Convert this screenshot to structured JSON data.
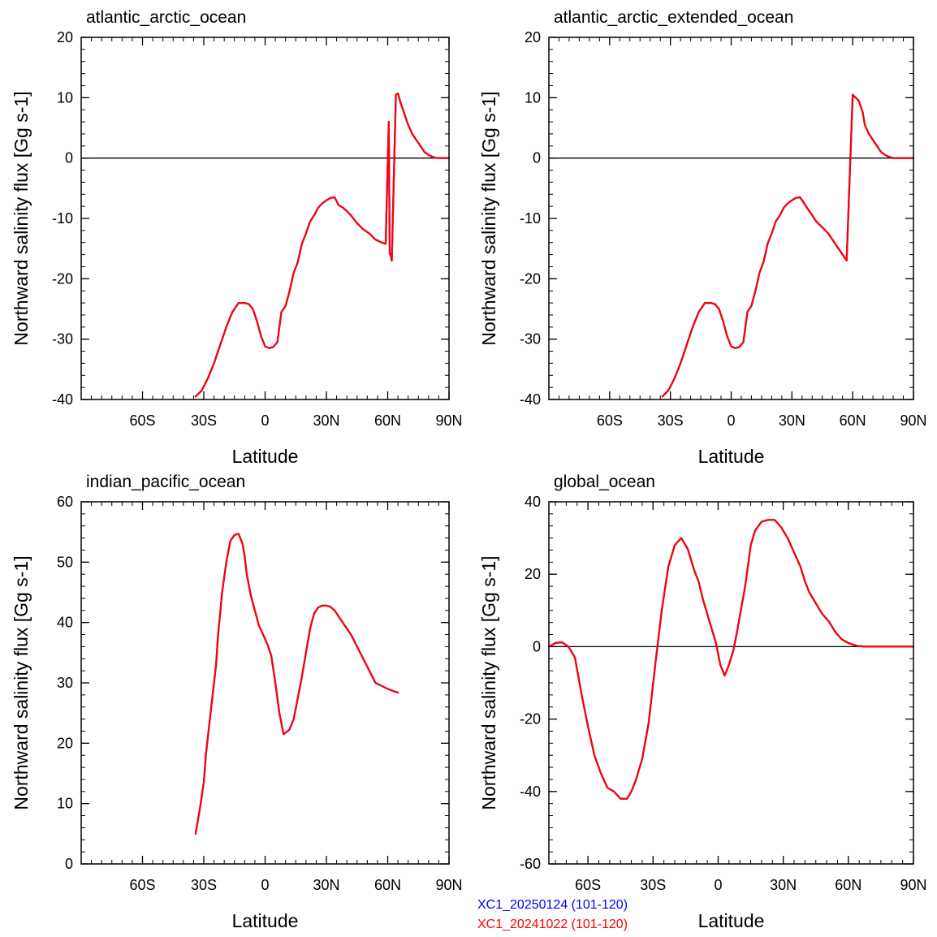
{
  "legend": [
    {
      "label": "XC1_20250124 (101-120)",
      "color": "#0000ff"
    },
    {
      "label": "XC1_20241022 (101-120)",
      "color": "#ff0000"
    }
  ],
  "chart_data": [
    {
      "type": "line",
      "title": "atlantic_arctic_ocean",
      "xlabel": "Latitude",
      "ylabel": "Northward salinity flux [Gg s-1]",
      "xlim": [
        -90,
        90
      ],
      "ylim": [
        -40,
        20
      ],
      "xticks": [
        -60,
        -30,
        0,
        30,
        60,
        90
      ],
      "xtick_labels": [
        "60S",
        "30S",
        "0",
        "30N",
        "60N",
        "90N"
      ],
      "yticks": [
        -40,
        -30,
        -20,
        -10,
        0,
        10,
        20
      ],
      "ytick_labels": [
        "-40",
        "-30",
        "-20",
        "-10",
        "0",
        "10",
        "20"
      ],
      "zero_line": true,
      "series": [
        {
          "color": "#ff0000",
          "x": [
            -34,
            -31,
            -28,
            -25,
            -22,
            -19,
            -16,
            -13,
            -10,
            -8,
            -6,
            -4,
            -2,
            0,
            2,
            4,
            6,
            8,
            10,
            12,
            14,
            16,
            18,
            20,
            22,
            24,
            26,
            28,
            30,
            32,
            34,
            36,
            38,
            40,
            42,
            45,
            48,
            51,
            54,
            57,
            59,
            60.5,
            61,
            61.5,
            62,
            64,
            65,
            66,
            68,
            70,
            72,
            74,
            76,
            78,
            80,
            82,
            84,
            86,
            88,
            90
          ],
          "y": [
            -39.5,
            -38.5,
            -36.5,
            -34,
            -31,
            -28,
            -25.5,
            -24,
            -24,
            -24.2,
            -25,
            -27,
            -29.5,
            -31.2,
            -31.5,
            -31.3,
            -30.5,
            -25.5,
            -24.5,
            -22,
            -19,
            -17.2,
            -14.2,
            -12.5,
            -10.5,
            -9.5,
            -8.2,
            -7.5,
            -7,
            -6.6,
            -6.5,
            -7.8,
            -8.2,
            -8.8,
            -9.5,
            -10.8,
            -11.8,
            -12.5,
            -13.5,
            -14,
            -14.2,
            6,
            -15.8,
            -16.2,
            -17,
            10.5,
            10.7,
            9.5,
            7.5,
            5.5,
            4,
            3,
            2,
            1,
            0.5,
            0.2,
            0,
            0,
            0,
            0
          ]
        },
        {
          "color": "#0000ff",
          "x": [
            -34,
            -31,
            -28,
            -25,
            -22,
            -19,
            -16,
            -13,
            -10,
            -8,
            -6,
            -4,
            -2,
            0,
            2,
            4,
            6,
            8,
            10,
            12,
            14,
            16,
            18,
            20,
            22,
            24,
            26,
            28,
            30,
            32,
            34,
            36,
            38,
            40,
            42,
            45,
            48,
            51,
            54,
            57,
            59,
            60.5,
            61,
            61.5,
            62,
            64,
            65,
            66,
            68,
            70,
            72,
            74,
            76,
            78,
            80,
            82,
            84,
            86,
            88,
            90
          ],
          "y": [
            -39.5,
            -38.5,
            -36.5,
            -34,
            -31,
            -28,
            -25.5,
            -24,
            -24,
            -24.2,
            -25,
            -27,
            -29.5,
            -31.2,
            -31.5,
            -31.3,
            -30.5,
            -25.5,
            -24.5,
            -22,
            -19,
            -17.2,
            -14.2,
            -12.5,
            -10.5,
            -9.5,
            -8.2,
            -7.5,
            -7,
            -6.6,
            -6.5,
            -7.8,
            -8.2,
            -8.8,
            -9.5,
            -10.8,
            -11.8,
            -12.5,
            -13.5,
            -14,
            -14.2,
            6,
            -15.8,
            -16.2,
            -17,
            10.5,
            10.7,
            9.5,
            7.5,
            5.5,
            4,
            3,
            2,
            1,
            0.5,
            0.2,
            0,
            0,
            0,
            0
          ]
        }
      ]
    },
    {
      "type": "line",
      "title": "atlantic_arctic_extended_ocean",
      "xlabel": "Latitude",
      "ylabel": "Northward salinity flux [Gg s-1]",
      "xlim": [
        -90,
        90
      ],
      "ylim": [
        -40,
        20
      ],
      "xticks": [
        -60,
        -30,
        0,
        30,
        60,
        90
      ],
      "xtick_labels": [
        "60S",
        "30S",
        "0",
        "30N",
        "60N",
        "90N"
      ],
      "yticks": [
        -40,
        -30,
        -20,
        -10,
        0,
        10,
        20
      ],
      "ytick_labels": [
        "-40",
        "-30",
        "-20",
        "-10",
        "0",
        "10",
        "20"
      ],
      "zero_line": true,
      "series": [
        {
          "color": "#ff0000",
          "x": [
            -34,
            -31,
            -28,
            -25,
            -22,
            -19,
            -16,
            -13,
            -10,
            -8,
            -6,
            -4,
            -2,
            0,
            2,
            4,
            6,
            8,
            10,
            12,
            14,
            16,
            18,
            20,
            22,
            24,
            26,
            28,
            30,
            32,
            34,
            36,
            38,
            40,
            42,
            45,
            48,
            51,
            54,
            57,
            60,
            63,
            65,
            66,
            68,
            70,
            72,
            74,
            76,
            78,
            80,
            82,
            84,
            86,
            88,
            90
          ],
          "y": [
            -39.5,
            -38.5,
            -36.5,
            -34,
            -31,
            -28,
            -25.5,
            -24,
            -24,
            -24.2,
            -25,
            -27,
            -29.5,
            -31.2,
            -31.5,
            -31.3,
            -30.5,
            -25.5,
            -24.5,
            -22,
            -19,
            -17.2,
            -14.2,
            -12.5,
            -10.5,
            -9.5,
            -8.2,
            -7.5,
            -7,
            -6.6,
            -6.5,
            -7.5,
            -8.5,
            -9.5,
            -10.5,
            -11.5,
            -12.5,
            -14,
            -15.5,
            -17,
            10.5,
            9.5,
            7.5,
            5.5,
            4,
            3,
            2,
            1,
            0.5,
            0.2,
            0,
            0,
            0,
            0,
            0,
            0
          ]
        },
        {
          "color": "#0000ff",
          "x": [
            -34,
            -31,
            -28,
            -25,
            -22,
            -19,
            -16,
            -13,
            -10,
            -8,
            -6,
            -4,
            -2,
            0,
            2,
            4,
            6,
            8,
            10,
            12,
            14,
            16,
            18,
            20,
            22,
            24,
            26,
            28,
            30,
            32,
            34,
            36,
            38,
            40,
            42,
            45,
            48,
            51,
            54,
            57,
            60,
            63,
            65,
            66,
            68,
            70,
            72,
            74,
            76,
            78,
            80,
            82,
            84,
            86,
            88,
            90
          ],
          "y": [
            -39.5,
            -38.5,
            -36.5,
            -34,
            -31,
            -28,
            -25.5,
            -24,
            -24,
            -24.2,
            -25,
            -27,
            -29.5,
            -31.2,
            -31.5,
            -31.3,
            -30.5,
            -25.5,
            -24.5,
            -22,
            -19,
            -17.2,
            -14.2,
            -12.5,
            -10.5,
            -9.5,
            -8.2,
            -7.5,
            -7,
            -6.6,
            -6.5,
            -7.5,
            -8.5,
            -9.5,
            -10.5,
            -11.5,
            -12.5,
            -14,
            -15.5,
            -17,
            10.5,
            9.5,
            7.5,
            5.5,
            4,
            3,
            2,
            1,
            0.5,
            0.2,
            0,
            0,
            0,
            0,
            0,
            0
          ]
        }
      ]
    },
    {
      "type": "line",
      "title": "indian_pacific_ocean",
      "xlabel": "Latitude",
      "ylabel": "Northward salinity flux [Gg s-1]",
      "xlim": [
        -90,
        90
      ],
      "ylim": [
        0,
        60
      ],
      "xticks": [
        -60,
        -30,
        0,
        30,
        60,
        90
      ],
      "xtick_labels": [
        "60S",
        "30S",
        "0",
        "30N",
        "60N",
        "90N"
      ],
      "yticks": [
        0,
        10,
        20,
        30,
        40,
        50,
        60
      ],
      "ytick_labels": [
        "0",
        "10",
        "20",
        "30",
        "40",
        "50",
        "60"
      ],
      "zero_line": false,
      "series": [
        {
          "color": "#ff0000",
          "x": [
            -34,
            -32,
            -30,
            -29,
            -27,
            -25,
            -24,
            -23,
            -21,
            -19,
            -17,
            -15,
            -13,
            -11,
            -10,
            -9,
            -7,
            -5,
            -3,
            -1,
            1,
            3,
            5,
            7,
            9,
            11,
            12,
            14,
            16,
            18,
            20,
            22,
            24,
            26,
            28,
            30,
            32,
            34,
            36,
            38,
            40,
            42,
            45,
            48,
            51,
            54,
            57,
            60,
            63,
            65
          ],
          "y": [
            5,
            9,
            13.5,
            18,
            24,
            30,
            33,
            38,
            45,
            50,
            53.5,
            54.5,
            54.7,
            53,
            51,
            48,
            44.5,
            42,
            39.5,
            38,
            36.5,
            34.5,
            30,
            25,
            21.5,
            22,
            22.3,
            24,
            27.5,
            31,
            35,
            39,
            41.5,
            42.5,
            42.8,
            42.8,
            42.6,
            42,
            41,
            40,
            39,
            38,
            36,
            34,
            32,
            30,
            29.5,
            29,
            28.6,
            28.4
          ]
        },
        {
          "color": "#0000ff",
          "x": [
            -34,
            -32,
            -30,
            -29,
            -27,
            -25,
            -24,
            -23,
            -21,
            -19,
            -17,
            -15,
            -13,
            -11,
            -10,
            -9,
            -7,
            -5,
            -3,
            -1,
            1,
            3,
            5,
            7,
            9,
            11,
            12,
            14,
            16,
            18,
            20,
            22,
            24,
            26,
            28,
            30,
            32,
            34,
            36,
            38,
            40,
            42,
            45,
            48,
            51,
            54,
            57,
            60,
            63,
            65
          ],
          "y": [
            5,
            9,
            13.5,
            18,
            24,
            30,
            33,
            38,
            45,
            50,
            53.5,
            54.5,
            54.7,
            53,
            51,
            48,
            44.5,
            42,
            39.5,
            38,
            36.5,
            34.5,
            30,
            25,
            21.5,
            22,
            22.3,
            24,
            27.5,
            31,
            35,
            39,
            41.5,
            42.5,
            42.8,
            42.8,
            42.6,
            42,
            41,
            40,
            39,
            38,
            36,
            34,
            32,
            30,
            29.5,
            29,
            28.6,
            28.4
          ]
        }
      ]
    },
    {
      "type": "line",
      "title": "global_ocean",
      "xlabel": "Latitude",
      "ylabel": "Northward salinity flux [Gg s-1]",
      "xlim": [
        -78,
        90
      ],
      "ylim": [
        -60,
        40
      ],
      "xticks": [
        -60,
        -30,
        0,
        30,
        60,
        90
      ],
      "xtick_labels": [
        "60S",
        "30S",
        "0",
        "30N",
        "60N",
        "90N"
      ],
      "yticks": [
        -60,
        -40,
        -20,
        0,
        20,
        40
      ],
      "ytick_labels": [
        "-60",
        "-40",
        "-20",
        "0",
        "20",
        "40"
      ],
      "zero_line": true,
      "series": [
        {
          "color": "#ff0000",
          "x": [
            -78,
            -75,
            -72,
            -69,
            -66,
            -63,
            -60,
            -57,
            -54,
            -51,
            -48,
            -45,
            -42,
            -40,
            -38,
            -35,
            -32,
            -29,
            -26,
            -23,
            -20,
            -17,
            -14,
            -11,
            -9,
            -7,
            -5,
            -3,
            -1,
            1,
            3,
            5,
            7,
            9,
            11,
            12,
            13,
            15,
            17,
            20,
            23,
            26,
            29,
            32,
            35,
            38,
            40,
            42,
            45,
            48,
            51,
            54,
            57,
            60,
            64,
            68,
            72,
            75,
            78,
            81,
            84,
            87,
            90
          ],
          "y": [
            0,
            1,
            1.2,
            0,
            -3,
            -13,
            -22,
            -30,
            -35,
            -39,
            -40,
            -42,
            -42,
            -40,
            -37,
            -31,
            -21,
            -5,
            10,
            22,
            28,
            30,
            27,
            21,
            18,
            13,
            9,
            5,
            1,
            -5,
            -8,
            -5,
            -1,
            5,
            12,
            15,
            19,
            28,
            32,
            34.5,
            35,
            35,
            33,
            30,
            26,
            22,
            18,
            15,
            12,
            9,
            7,
            4,
            2,
            1,
            0.2,
            0,
            0,
            0,
            0,
            0,
            0,
            0,
            0
          ]
        },
        {
          "color": "#0000ff",
          "x": [
            -78,
            -75,
            -72,
            -69,
            -66,
            -63,
            -60,
            -57,
            -54,
            -51,
            -48,
            -45,
            -42,
            -40,
            -38,
            -35,
            -32,
            -29,
            -26,
            -23,
            -20,
            -17,
            -14,
            -11,
            -9,
            -7,
            -5,
            -3,
            -1,
            1,
            3,
            5,
            7,
            9,
            11,
            12,
            13,
            15,
            17,
            20,
            23,
            26,
            29,
            32,
            35,
            38,
            40,
            42,
            45,
            48,
            51,
            54,
            57,
            60,
            64,
            68,
            72,
            75,
            78,
            81,
            84,
            87,
            90
          ],
          "y": [
            0,
            1,
            1.2,
            0,
            -3,
            -13,
            -22,
            -30,
            -35,
            -39,
            -40,
            -42,
            -42,
            -40,
            -37,
            -31,
            -21,
            -5,
            10,
            22,
            28,
            30,
            27,
            21,
            18,
            13,
            9,
            5,
            1,
            -5,
            -8,
            -5,
            -1,
            5,
            12,
            15,
            19,
            28,
            32,
            34.5,
            35,
            35,
            33,
            30,
            26,
            22,
            18,
            15,
            12,
            9,
            7,
            4,
            2,
            1,
            0.2,
            0,
            0,
            0,
            0,
            0,
            0,
            0,
            0
          ]
        }
      ]
    }
  ]
}
